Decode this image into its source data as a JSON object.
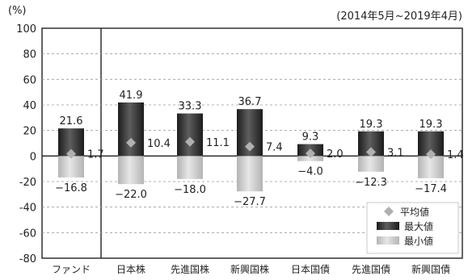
{
  "chart_data": {
    "type": "bar",
    "unit_label": "(%)",
    "period": "(2014年5月~2019年4月)",
    "ylim": [
      -80,
      100
    ],
    "yticks": [
      "100",
      "80",
      "60",
      "40",
      "20",
      "0",
      "-20",
      "-40",
      "-60",
      "-80"
    ],
    "categories": [
      "ファンド",
      "日本株",
      "先進国株",
      "新興国株",
      "日本国債",
      "先進国債",
      "新興国債"
    ],
    "series": [
      {
        "name": "最大値",
        "values": [
          21.6,
          41.9,
          33.3,
          36.7,
          9.3,
          19.3,
          19.3
        ]
      },
      {
        "name": "最小値",
        "values": [
          -16.8,
          -22.0,
          -18.0,
          -27.7,
          -4.0,
          -12.3,
          -17.4
        ]
      },
      {
        "name": "平均値",
        "values": [
          1.7,
          10.4,
          11.1,
          7.4,
          2.0,
          3.1,
          1.4
        ]
      }
    ],
    "labels": {
      "max": [
        "21.6",
        "41.9",
        "33.3",
        "36.7",
        "9.3",
        "19.3",
        "19.3"
      ],
      "min": [
        "−16.8",
        "−22.0",
        "−18.0",
        "−27.7",
        "−4.0",
        "−12.3",
        "−17.4"
      ],
      "avg": [
        "1.7",
        "10.4",
        "11.1",
        "7.4",
        "2.0",
        "3.1",
        "1.4"
      ]
    },
    "legend": {
      "position": "bottom-right",
      "items": [
        "平均値",
        "最大値",
        "最小値"
      ]
    },
    "grid": true,
    "colors": {
      "max_bar": "#2a2a2a",
      "max_bar_highlight": "#6a6a6a",
      "min_bar": "#c4c4c4",
      "min_bar_highlight": "#e4e4e4",
      "avg_marker": "#b0b0b0",
      "grid": "#9a9a9a",
      "axis": "#222222"
    }
  }
}
